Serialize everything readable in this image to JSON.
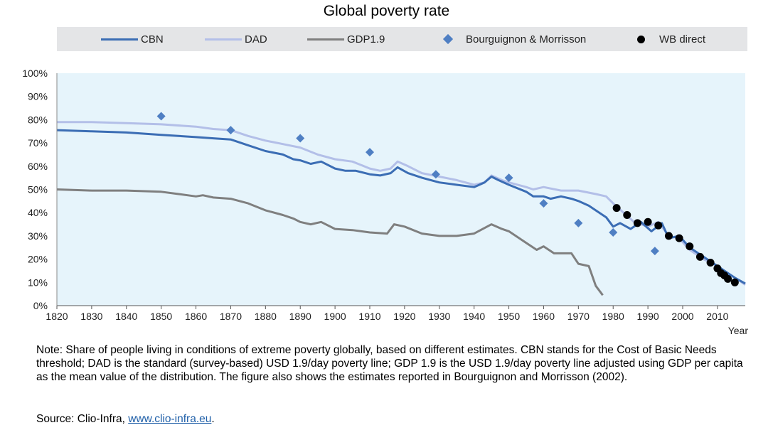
{
  "chart_data": {
    "type": "line",
    "title": "Global poverty rate",
    "xlabel": "Year",
    "ylabel": "",
    "xlim": [
      1820,
      2018
    ],
    "ylim": [
      0,
      100
    ],
    "x_ticks": [
      1820,
      1830,
      1840,
      1850,
      1860,
      1870,
      1880,
      1890,
      1900,
      1910,
      1920,
      1930,
      1940,
      1950,
      1960,
      1970,
      1980,
      1990,
      2000,
      2010
    ],
    "y_ticks": [
      0,
      10,
      20,
      30,
      40,
      50,
      60,
      70,
      80,
      90,
      100
    ],
    "y_tick_labels": [
      "0%",
      "10%",
      "20%",
      "30%",
      "40%",
      "50%",
      "60%",
      "70%",
      "80%",
      "90%",
      "100%"
    ],
    "series": [
      {
        "name": "CBN",
        "kind": "line",
        "color": "#3b6db4",
        "x": [
          1820,
          1830,
          1840,
          1850,
          1860,
          1865,
          1870,
          1875,
          1880,
          1885,
          1888,
          1890,
          1893,
          1896,
          1900,
          1903,
          1906,
          1910,
          1913,
          1916,
          1918,
          1921,
          1925,
          1930,
          1935,
          1940,
          1943,
          1945,
          1947,
          1950,
          1955,
          1957,
          1960,
          1962,
          1965,
          1968,
          1970,
          1973,
          1976,
          1978,
          1980,
          1982,
          1985,
          1988,
          1991,
          1994,
          1996,
          1999,
          2002,
          2006,
          2010,
          2015,
          2018
        ],
        "values": [
          75.5,
          75,
          74.5,
          73.5,
          72.5,
          72,
          71.5,
          69,
          66.5,
          65,
          63,
          62.5,
          61,
          62,
          59,
          58,
          58,
          56.5,
          56,
          57,
          59.5,
          57,
          55,
          53,
          52,
          51,
          53,
          55.5,
          54,
          52,
          49,
          47,
          47,
          46,
          47,
          46,
          45,
          43,
          40,
          38,
          34,
          35.5,
          33,
          36,
          32,
          35.5,
          29,
          30,
          25,
          21,
          17,
          12,
          9.5
        ]
      },
      {
        "name": "DAD",
        "kind": "line",
        "color": "#b3bfe8",
        "x": [
          1820,
          1830,
          1840,
          1850,
          1860,
          1865,
          1870,
          1875,
          1880,
          1885,
          1890,
          1895,
          1900,
          1905,
          1910,
          1913,
          1916,
          1918,
          1921,
          1925,
          1930,
          1935,
          1940,
          1943,
          1945,
          1948,
          1950,
          1955,
          1957,
          1960,
          1965,
          1970,
          1975,
          1978,
          1980,
          1983,
          1986,
          1990,
          1993,
          1996,
          1999,
          2002,
          2006,
          2010,
          2015,
          2018
        ],
        "values": [
          79,
          79,
          78.5,
          78,
          77,
          76,
          75.5,
          73,
          71,
          69.5,
          68,
          65,
          63,
          62,
          59,
          58,
          59,
          62,
          60,
          57,
          55.5,
          54,
          52,
          53,
          56,
          54,
          53,
          51,
          50,
          51,
          49.5,
          49.5,
          48,
          47,
          44,
          40,
          36,
          34,
          36,
          30,
          29,
          24,
          20,
          17,
          12,
          9
        ]
      },
      {
        "name": "GDP1.9",
        "kind": "line",
        "color": "#7f7f7f",
        "x": [
          1820,
          1830,
          1840,
          1850,
          1855,
          1860,
          1862,
          1865,
          1870,
          1875,
          1880,
          1885,
          1888,
          1890,
          1893,
          1896,
          1900,
          1905,
          1910,
          1915,
          1917,
          1920,
          1925,
          1930,
          1935,
          1940,
          1945,
          1948,
          1950,
          1955,
          1958,
          1960,
          1963,
          1965,
          1968,
          1970,
          1973,
          1975,
          1977
        ],
        "values": [
          50,
          49.5,
          49.5,
          49,
          48,
          47,
          47.5,
          46.5,
          46,
          44,
          41,
          39,
          37.5,
          36,
          35,
          36,
          33,
          32.5,
          31.5,
          31,
          35,
          34,
          31,
          30,
          30,
          31,
          35,
          33,
          32,
          27,
          24,
          25.5,
          22.5,
          22.5,
          22.5,
          18,
          17,
          8.5,
          4.5
        ]
      },
      {
        "name": "Bourguignon & Morrisson",
        "kind": "marker-diamond",
        "color": "#4f7fc3",
        "x": [
          1850,
          1870,
          1890,
          1910,
          1929,
          1950,
          1960,
          1970,
          1980,
          1992
        ],
        "values": [
          81.5,
          75.5,
          72,
          66,
          56.5,
          55,
          44,
          35.5,
          31.5,
          23.5
        ]
      },
      {
        "name": "WB direct",
        "kind": "marker-dot",
        "color": "#000000",
        "x": [
          1981,
          1984,
          1987,
          1990,
          1993,
          1996,
          1999,
          2002,
          2005,
          2008,
          2010,
          2011,
          2012,
          2013,
          2015
        ],
        "values": [
          42,
          39,
          35.5,
          36,
          34.5,
          30,
          29,
          25.5,
          21,
          18.5,
          16,
          14,
          13,
          11.5,
          10
        ]
      }
    ]
  },
  "legend": {
    "items": [
      {
        "label": "CBN",
        "color": "#3b6db4"
      },
      {
        "label": "DAD",
        "color": "#b3bfe8"
      },
      {
        "label": "GDP1.9",
        "color": "#7f7f7f"
      },
      {
        "label": "Bourguignon & Morrisson",
        "color": "#4f7fc3"
      },
      {
        "label": "WB direct",
        "color": "#000000"
      }
    ]
  },
  "note": "Note: Share of people living in conditions of extreme poverty globally, based on different estimates. CBN stands for the Cost of Basic Needs threshold; DAD is the standard (survey-based) USD 1.9/day poverty line; GDP 1.9 is the USD 1.9/day poverty line adjusted using GDP per capita as the mean value of the distribution. The figure also shows the estimates reported in Bourguignon and Morrisson (2002).",
  "source": {
    "prefix": "Source: Clio-Infra, ",
    "link": "www.clio-infra.eu",
    "suffix": "."
  },
  "colors": {
    "plot_background": "#e6f4fb",
    "legend_background": "#e4e5e7",
    "link": "#1f5fa8"
  }
}
